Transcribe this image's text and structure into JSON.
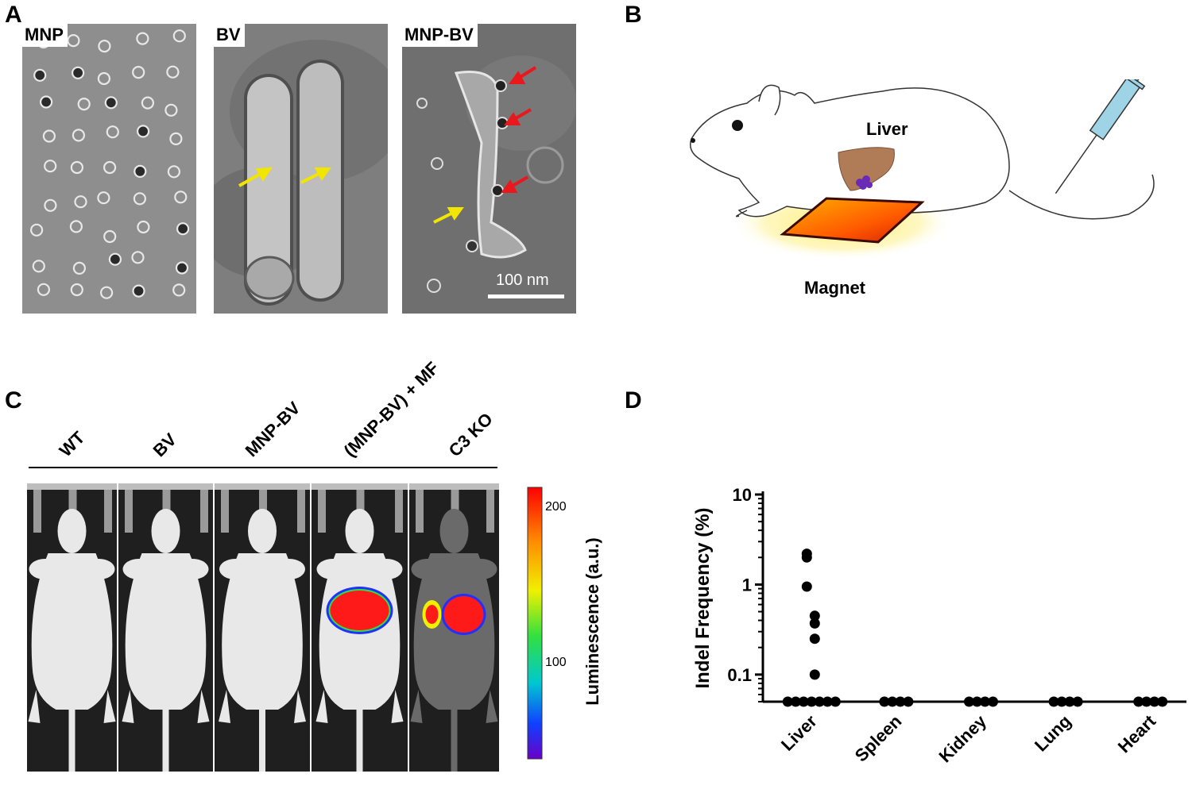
{
  "panels": {
    "a": {
      "label": "A",
      "images": [
        {
          "tag": "MNP"
        },
        {
          "tag": "BV"
        },
        {
          "tag": "MNP-BV",
          "scalebar": "100 nm"
        }
      ]
    },
    "b": {
      "label": "B",
      "liver_label": "Liver",
      "magnet_label": "Magnet"
    },
    "c": {
      "label": "C",
      "groups": [
        "WT",
        "BV",
        "MNP-BV",
        "(MNP-BV) + MF",
        "C3 KO"
      ],
      "colorbar": {
        "title": "Luminescence (a.u.)",
        "ticks": [
          "200",
          "100"
        ],
        "min": 50,
        "max": 215
      }
    },
    "d": {
      "label": "D"
    }
  },
  "colors": {
    "arrow_yellow": "#f2e600",
    "arrow_red": "#e8181c",
    "signal_red": "#ff1a1a",
    "liver_brown": "#b07c58",
    "syringe_blue": "#9fd3e6"
  },
  "chart_data": {
    "type": "scatter",
    "ylabel": "Indel Frequency (%)",
    "yscale": "log",
    "ylim": [
      0.05,
      10
    ],
    "yticks": [
      "10",
      "1",
      "0.1"
    ],
    "categories": [
      "Liver",
      "Spleen",
      "Kidney",
      "Lung",
      "Heart"
    ],
    "points": [
      {
        "category": "Liver",
        "values": [
          2.2,
          2.0,
          0.95,
          0.45,
          0.37,
          0.25,
          0.1,
          0.05,
          0.05,
          0.05,
          0.05,
          0.05,
          0.05,
          0.05
        ]
      },
      {
        "category": "Spleen",
        "values": [
          0.05,
          0.05,
          0.05,
          0.05
        ]
      },
      {
        "category": "Kidney",
        "values": [
          0.05,
          0.05,
          0.05,
          0.05
        ]
      },
      {
        "category": "Lung",
        "values": [
          0.05,
          0.05,
          0.05,
          0.05
        ]
      },
      {
        "category": "Heart",
        "values": [
          0.05,
          0.05,
          0.05,
          0.05
        ]
      }
    ]
  }
}
